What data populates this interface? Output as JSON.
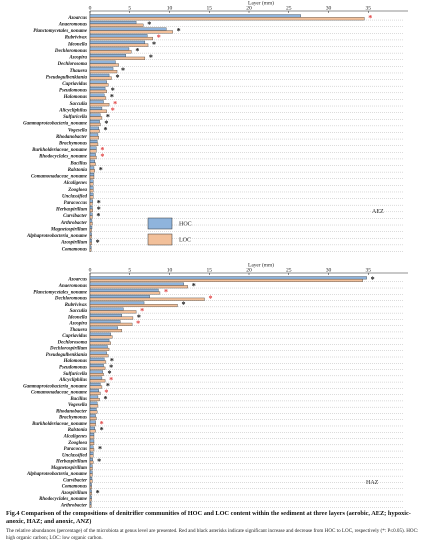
{
  "chart_data": [
    {
      "type": "bar",
      "orientation": "horizontal",
      "xlabel": "Layer (mm)",
      "xlim": [
        0,
        40
      ],
      "xticks": [
        0,
        5,
        10,
        15,
        20,
        25,
        30,
        35
      ],
      "panel_label": "AEZ",
      "legend": {
        "placement": "lower-center",
        "entries": [
          "HOC",
          "LOC"
        ]
      },
      "colors": {
        "HOC": "#8fb4dc",
        "LOC": "#f2c09a",
        "sig_red": "#e04040",
        "sig_black": "#111111"
      },
      "categories": [
        "Azoarcus",
        "Anaeromonas",
        "Planctomycetales_noname",
        "Rubrivivax",
        "Ideonella",
        "Dechloromonas",
        "Azospira",
        "Dechlorosoma",
        "Thauera",
        "Pseudogulbenkiania",
        "Cupriavidus",
        "Pseudomonas",
        "Halomonas",
        "Sacculia",
        "Alicycliphilus",
        "Sulfuricella",
        "Gammaproteobacteria_noname",
        "Vogesella",
        "Rhodanobacter",
        "Brachymonas",
        "Burkholderiaceae_noname",
        "Rhodocyclales_noname",
        "Bacillus",
        "Ralstonia",
        "Comamonadaceae_noname",
        "Alcaligenes",
        "Zoogloea",
        "Unclassified",
        "Paracoccus",
        "Herbaspirillum",
        "Curvibacter",
        "Arthrobacter",
        "Magnetospirillum",
        "Alphaproteobacteria_noname",
        "Azospirillum",
        "Comamonas"
      ],
      "series": [
        {
          "name": "HOC",
          "values": [
            26.5,
            5.8,
            9.6,
            7.2,
            6.9,
            4.9,
            4.5,
            3.2,
            2.9,
            2.4,
            2.1,
            1.9,
            1.8,
            1.7,
            1.5,
            1.3,
            1.2,
            1.1,
            1.0,
            0.9,
            0.8,
            0.7,
            0.6,
            0.5,
            0.5,
            0.4,
            0.4,
            0.4,
            0.35,
            0.3,
            0.3,
            0.25,
            0.25,
            0.2,
            0.2,
            0.15
          ]
        },
        {
          "name": "LOC",
          "values": [
            34.5,
            6.7,
            10.4,
            7.9,
            7.3,
            5.2,
            6.9,
            3.6,
            3.4,
            2.7,
            2.3,
            2.1,
            2.0,
            2.4,
            2.1,
            1.5,
            1.3,
            1.2,
            1.1,
            1.0,
            0.8,
            0.8,
            0.7,
            0.6,
            0.5,
            0.4,
            0.4,
            0.4,
            0.3,
            0.35,
            0.3,
            0.3,
            0.2,
            0.2,
            0.2,
            0.15
          ]
        }
      ],
      "significance": [
        "red",
        "black",
        "black",
        "red",
        "black",
        "black",
        "black",
        "",
        "black",
        "black",
        "",
        "black",
        "black",
        "red",
        "red",
        "black",
        "black",
        "black",
        "",
        "",
        "red",
        "red",
        "",
        "black",
        "",
        "",
        "",
        "",
        "black",
        "black",
        "black",
        "",
        "",
        "",
        "black",
        ""
      ]
    },
    {
      "type": "bar",
      "orientation": "horizontal",
      "xlabel": "Layer (mm)",
      "xlim": [
        0,
        40
      ],
      "xticks": [
        0,
        5,
        10,
        15,
        20,
        25,
        30,
        35
      ],
      "panel_label": "HAZ",
      "colors": {
        "HOC": "#8fb4dc",
        "LOC": "#f2c09a",
        "sig_red": "#e04040",
        "sig_black": "#111111"
      },
      "categories": [
        "Azoarcus",
        "Anaeromonas",
        "Planctomycetales_noname",
        "Dechloromonas",
        "Rubrivivax",
        "Sacculia",
        "Ideonella",
        "Azospira",
        "Thauera",
        "Cupriavidus",
        "Dechlorosoma",
        "Dechlorospirillum",
        "Pseudogulbenkiania",
        "Halomonas",
        "Pseudomonas",
        "Sulfuricella",
        "Alicycliphilus",
        "Gammaproteobacteria_noname",
        "Comamonadaceae_noname",
        "Bacillus",
        "Vogesella",
        "Rhodanobacter",
        "Brachymonas",
        "Burkholderiaceae_noname",
        "Ralstonia",
        "Alcaligenes",
        "Zoogloea",
        "Paracoccus",
        "Unclassified",
        "Herbaspirillum",
        "Magnetospirillum",
        "Alphaproteobacteria_noname",
        "Curvibacter",
        "Comamonas",
        "Azospirillum",
        "Rhodocyclales_noname",
        "Arthrobacter"
      ],
      "series": [
        {
          "name": "HOC",
          "values": [
            34.8,
            11.8,
            8.6,
            7.5,
            6.8,
            4.2,
            4.0,
            3.8,
            3.5,
            2.6,
            2.4,
            2.2,
            2.1,
            1.8,
            1.7,
            1.6,
            1.5,
            1.3,
            1.1,
            1.0,
            0.9,
            0.8,
            0.7,
            0.7,
            0.6,
            0.5,
            0.5,
            0.4,
            0.4,
            0.35,
            0.3,
            0.3,
            0.25,
            0.2,
            0.2,
            0.2,
            0.15
          ]
        },
        {
          "name": "LOC",
          "values": [
            34.3,
            12.3,
            8.8,
            14.4,
            11.0,
            5.8,
            5.4,
            5.3,
            4.0,
            2.8,
            2.6,
            2.4,
            2.3,
            2.0,
            1.9,
            1.7,
            1.9,
            1.5,
            1.3,
            1.2,
            1.0,
            0.9,
            0.8,
            0.7,
            0.7,
            0.5,
            0.5,
            0.5,
            0.4,
            0.4,
            0.3,
            0.3,
            0.3,
            0.2,
            0.2,
            0.2,
            0.15
          ]
        }
      ],
      "significance": [
        "black",
        "black",
        "red",
        "red",
        "black",
        "red",
        "black",
        "red",
        "",
        "",
        "",
        "",
        "",
        "black",
        "black",
        "black",
        "red",
        "black",
        "red",
        "black",
        "",
        "",
        "",
        "red",
        "black",
        "",
        "",
        "black",
        "",
        "black",
        "",
        "",
        "",
        "",
        "black",
        "",
        ""
      ]
    }
  ],
  "caption": {
    "title": "Fig.4 Comparison of the compositions of denitrifier communities of HOC and LOC content within the sediment at three layers (aerobic, AEZ; hypoxic-anoxic, HAZ; and anoxic, ANZ)",
    "note": "The relative abundances (percentage) of the microbiota at genus level are presented. Red and black asterisks indicate significant increase and decrease from HOC to LOC, respectively (*: P≤0.05). HOC: high organic carbon; LOC: low organic carbon."
  }
}
